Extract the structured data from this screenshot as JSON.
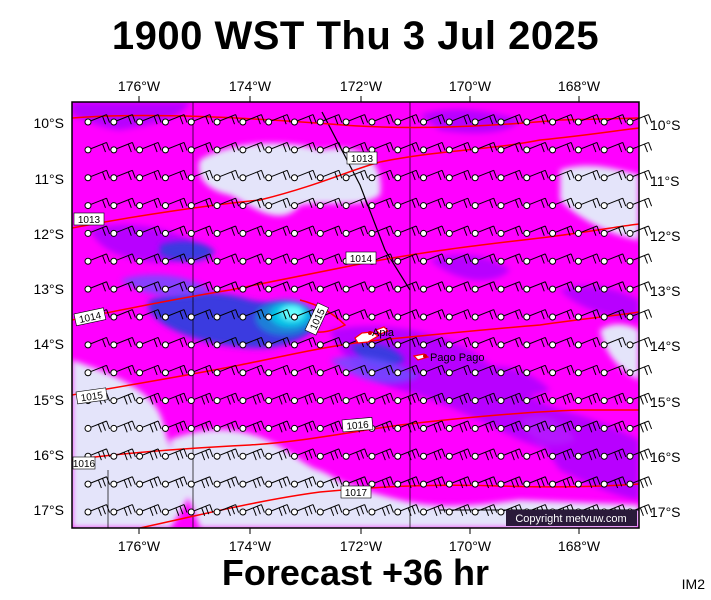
{
  "header": {
    "title": "1900 WST Thu 3 Jul 2025"
  },
  "footer": {
    "forecast": "Forecast +36 hr",
    "code": "IM2"
  },
  "map": {
    "lon_ticks": [
      "176°W",
      "174°W",
      "172°W",
      "170°W",
      "168°W"
    ],
    "lat_ticks": [
      "10°S",
      "11°S",
      "12°S",
      "13°S",
      "14°S",
      "15°S",
      "16°S",
      "17°S"
    ],
    "places": {
      "apia": "Apia",
      "pago": "Pago Pago"
    },
    "copyright": "Copyright metvuw.com",
    "isobar_labels": [
      "1013",
      "1013",
      "1014",
      "1014",
      "1015",
      "1015",
      "1016",
      "1016",
      "1017"
    ],
    "colors": {
      "pink": "#ff00ff",
      "violet": "#aa00ff",
      "blue": "#3a3ad6",
      "light": "#e0e0f8",
      "cyan": "#00ffff",
      "isobar": "#ff0000"
    }
  }
}
